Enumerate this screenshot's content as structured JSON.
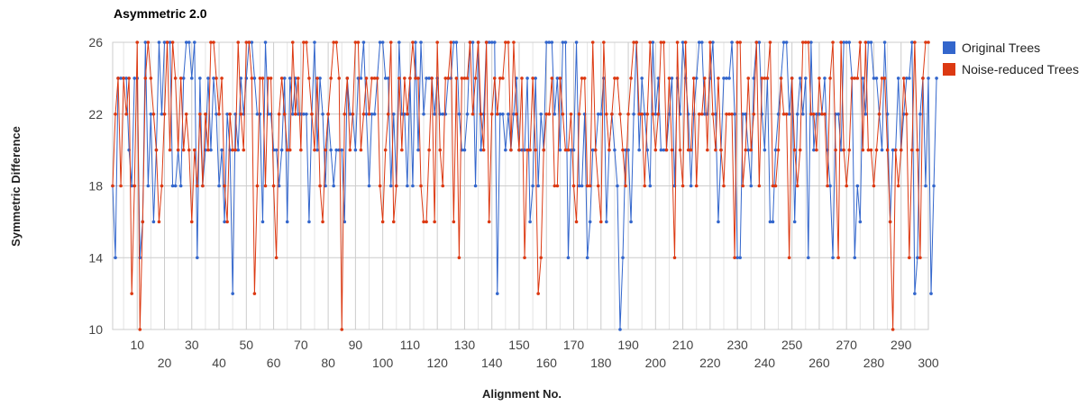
{
  "chart_data": {
    "type": "line",
    "title": "Asymmetric 2.0",
    "xlabel": "Alignment No.",
    "ylabel": "Symmetric Difference",
    "xlim": [
      1,
      300
    ],
    "ylim": [
      10,
      26
    ],
    "y_ticks": [
      10,
      14,
      18,
      22,
      26
    ],
    "x_ticks_upper": [
      10,
      30,
      50,
      70,
      90,
      110,
      130,
      150,
      170,
      190,
      210,
      230,
      250,
      270,
      290
    ],
    "x_ticks_lower": [
      20,
      40,
      60,
      80,
      100,
      120,
      140,
      160,
      180,
      200,
      220,
      240,
      260,
      280,
      300
    ],
    "grid": true,
    "legend_position": "right",
    "series": [
      {
        "name": "Original Trees",
        "color": "#3366cc",
        "values": [
          18,
          14,
          24,
          24,
          24,
          24,
          20,
          18,
          24,
          24,
          14,
          16,
          26,
          18,
          22,
          16,
          20,
          26,
          22,
          26,
          26,
          26,
          18,
          18,
          20,
          18,
          24,
          26,
          26,
          24,
          26,
          14,
          24,
          18,
          20,
          24,
          20,
          24,
          22,
          18,
          20,
          16,
          22,
          20,
          12,
          22,
          20,
          24,
          22,
          24,
          26,
          26,
          24,
          22,
          22,
          16,
          26,
          22,
          22,
          20,
          20,
          18,
          20,
          24,
          16,
          24,
          22,
          24,
          22,
          22,
          22,
          22,
          16,
          22,
          26,
          20,
          24,
          22,
          18,
          22,
          20,
          18,
          20,
          20,
          20,
          16,
          24,
          22,
          22,
          20,
          24,
          24,
          26,
          22,
          18,
          22,
          22,
          24,
          26,
          26,
          24,
          24,
          18,
          22,
          18,
          26,
          22,
          22,
          18,
          24,
          18,
          26,
          20,
          26,
          22,
          24,
          24,
          24,
          22,
          24,
          22,
          22,
          22,
          24,
          24,
          26,
          26,
          22,
          20,
          20,
          22,
          26,
          26,
          18,
          26,
          20,
          22,
          26,
          26,
          26,
          26,
          12,
          22,
          22,
          20,
          22,
          20,
          22,
          24,
          20,
          20,
          20,
          24,
          16,
          18,
          24,
          18,
          22,
          20,
          26,
          26,
          26,
          22,
          24,
          20,
          26,
          26,
          14,
          20,
          20,
          26,
          18,
          18,
          22,
          14,
          16,
          20,
          20,
          22,
          22,
          24,
          16,
          20,
          22,
          20,
          18,
          10,
          14,
          20,
          20,
          16,
          22,
          26,
          20,
          24,
          22,
          20,
          18,
          26,
          22,
          24,
          20,
          20,
          20,
          22,
          24,
          18,
          24,
          22,
          26,
          24,
          22,
          18,
          22,
          24,
          26,
          26,
          22,
          22,
          24,
          26,
          22,
          16,
          20,
          24,
          24,
          24,
          26,
          22,
          14,
          14,
          22,
          22,
          20,
          18,
          24,
          26,
          26,
          22,
          20,
          24,
          16,
          16,
          20,
          22,
          24,
          26,
          26,
          22,
          24,
          16,
          22,
          24,
          22,
          24,
          14,
          26,
          20,
          22,
          22,
          22,
          24,
          20,
          18,
          14,
          22,
          22,
          20,
          26,
          26,
          26,
          24,
          14,
          18,
          16,
          24,
          22,
          26,
          26,
          24,
          24,
          22,
          20,
          26,
          22,
          16,
          20,
          20,
          24,
          20,
          22,
          24,
          24,
          26,
          12,
          14,
          22,
          24,
          18,
          24,
          12,
          18,
          24
        ]
      },
      {
        "name": "Noise-reduced Trees",
        "color": "#dc3912",
        "values": [
          18,
          22,
          24,
          18,
          24,
          22,
          24,
          12,
          18,
          26,
          10,
          16,
          24,
          26,
          24,
          22,
          20,
          16,
          18,
          22,
          26,
          20,
          26,
          24,
          20,
          24,
          20,
          22,
          20,
          16,
          20,
          18,
          22,
          18,
          22,
          20,
          26,
          26,
          24,
          22,
          24,
          18,
          16,
          22,
          20,
          20,
          26,
          22,
          20,
          26,
          26,
          24,
          12,
          18,
          24,
          24,
          18,
          24,
          24,
          18,
          14,
          22,
          24,
          22,
          20,
          20,
          26,
          22,
          24,
          20,
          26,
          26,
          24,
          22,
          20,
          24,
          18,
          16,
          20,
          22,
          24,
          26,
          26,
          24,
          10,
          22,
          24,
          20,
          22,
          26,
          26,
          20,
          22,
          24,
          22,
          24,
          24,
          24,
          18,
          16,
          20,
          22,
          26,
          16,
          18,
          24,
          20,
          24,
          22,
          24,
          26,
          24,
          24,
          18,
          16,
          16,
          20,
          24,
          16,
          26,
          20,
          18,
          24,
          24,
          26,
          16,
          24,
          14,
          24,
          24,
          24,
          26,
          22,
          24,
          26,
          22,
          20,
          26,
          16,
          22,
          24,
          22,
          24,
          24,
          26,
          26,
          20,
          26,
          22,
          20,
          24,
          14,
          20,
          20,
          24,
          20,
          12,
          14,
          20,
          22,
          22,
          24,
          18,
          18,
          24,
          22,
          20,
          20,
          22,
          18,
          16,
          22,
          24,
          24,
          18,
          18,
          26,
          20,
          18,
          16,
          26,
          22,
          20,
          22,
          24,
          24,
          22,
          20,
          18,
          22,
          24,
          26,
          26,
          22,
          22,
          18,
          22,
          26,
          22,
          20,
          22,
          26,
          26,
          20,
          24,
          20,
          14,
          26,
          20,
          18,
          26,
          20,
          20,
          24,
          18,
          22,
          22,
          24,
          20,
          26,
          22,
          20,
          24,
          20,
          18,
          22,
          22,
          22,
          14,
          26,
          26,
          18,
          20,
          24,
          20,
          22,
          26,
          18,
          24,
          24,
          24,
          26,
          18,
          18,
          20,
          24,
          22,
          22,
          14,
          24,
          20,
          18,
          20,
          26,
          26,
          26,
          22,
          22,
          20,
          24,
          22,
          22,
          18,
          24,
          26,
          20,
          14,
          26,
          20,
          18,
          20,
          24,
          24,
          24,
          26,
          20,
          26,
          20,
          20,
          18,
          20,
          22,
          24,
          24,
          20,
          16,
          10,
          20,
          18,
          20,
          24,
          22,
          14,
          20,
          26,
          20,
          14,
          24,
          26,
          26
        ]
      }
    ]
  }
}
